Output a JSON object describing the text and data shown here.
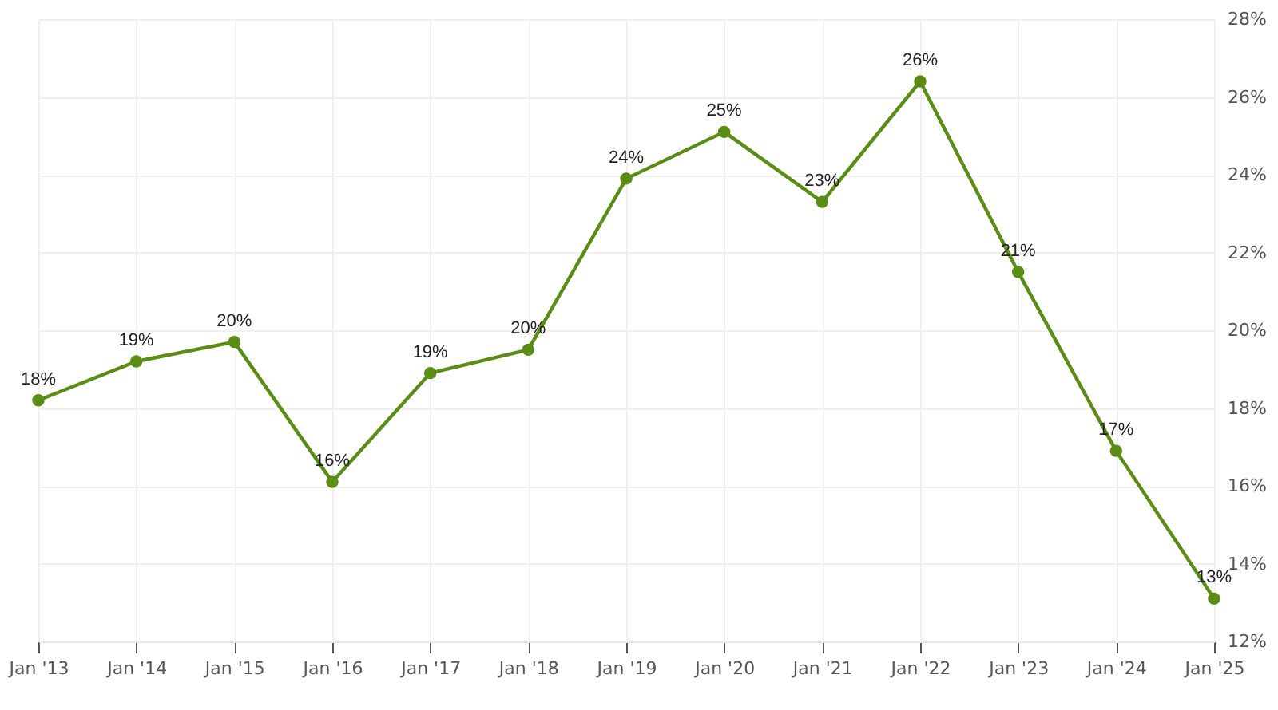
{
  "chart_data": {
    "type": "line",
    "categories": [
      "Jan '13",
      "Jan '14",
      "Jan '15",
      "Jan '16",
      "Jan '17",
      "Jan '18",
      "Jan '19",
      "Jan '20",
      "Jan '21",
      "Jan '22",
      "Jan '23",
      "Jan '24",
      "Jan '25"
    ],
    "series": [
      {
        "color": "#5b8c16",
        "values": [
          18.2,
          19.2,
          19.7,
          16.1,
          18.9,
          19.5,
          23.9,
          25.1,
          23.3,
          26.4,
          21.5,
          16.9,
          13.1
        ],
        "value_labels": [
          "18%",
          "19%",
          "20%",
          "16%",
          "19%",
          "20%",
          "24%",
          "25%",
          "23%",
          "26%",
          "21%",
          "17%",
          "13%"
        ]
      }
    ],
    "ylim": [
      12,
      28
    ],
    "yticks": [
      {
        "value": 12,
        "label": "12%"
      },
      {
        "value": 14,
        "label": "14%"
      },
      {
        "value": 16,
        "label": "16%"
      },
      {
        "value": 18,
        "label": "18%"
      },
      {
        "value": 20,
        "label": "20%"
      },
      {
        "value": 22,
        "label": "22%"
      },
      {
        "value": 24,
        "label": "24%"
      },
      {
        "value": 26,
        "label": "26%"
      },
      {
        "value": 28,
        "label": "28%"
      }
    ],
    "grid": true,
    "marker": "circle",
    "line_style": "solid"
  }
}
